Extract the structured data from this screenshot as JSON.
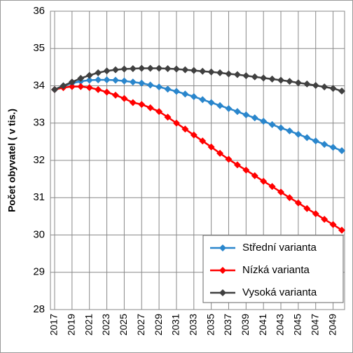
{
  "chart_data": {
    "type": "line",
    "y_label": "Počet obyvatel ( v tis.)",
    "categories": [
      "2017",
      null,
      "2019",
      null,
      "2021",
      null,
      "2023",
      null,
      "2025",
      null,
      "2027",
      null,
      "2029",
      null,
      "2031",
      null,
      "2033",
      null,
      "2035",
      null,
      "2037",
      null,
      "2039",
      null,
      "2041",
      null,
      "2043",
      null,
      "2045",
      null,
      "2047",
      null,
      "2049",
      null
    ],
    "series": [
      {
        "name": "Střední varianta",
        "color": "#2a86cc",
        "values": [
          33.9,
          34.0,
          34.07,
          34.12,
          34.15,
          34.16,
          34.16,
          34.15,
          34.13,
          34.1,
          34.07,
          34.02,
          33.97,
          33.91,
          33.85,
          33.78,
          33.71,
          33.63,
          33.55,
          33.47,
          33.39,
          33.31,
          33.22,
          33.14,
          33.05,
          32.96,
          32.87,
          32.79,
          32.7,
          32.61,
          32.52,
          32.43,
          32.35,
          32.26
        ]
      },
      {
        "name": "Nízká varianta",
        "color": "#ff0000",
        "values": [
          33.9,
          33.95,
          33.98,
          33.98,
          33.95,
          33.9,
          33.83,
          33.75,
          33.66,
          33.55,
          33.5,
          33.41,
          33.31,
          33.16,
          33.0,
          32.84,
          32.68,
          32.52,
          32.36,
          32.19,
          32.03,
          31.88,
          31.74,
          31.59,
          31.44,
          31.3,
          31.15,
          31.0,
          30.86,
          30.71,
          30.57,
          30.42,
          30.28,
          30.13
        ]
      },
      {
        "name": "Vysoká varianta",
        "color": "#404040",
        "values": [
          33.9,
          34.0,
          34.1,
          34.2,
          34.28,
          34.35,
          34.4,
          34.43,
          34.45,
          34.46,
          34.47,
          34.47,
          34.47,
          34.46,
          34.45,
          34.43,
          34.41,
          34.39,
          34.37,
          34.35,
          34.32,
          34.3,
          34.27,
          34.24,
          34.21,
          34.18,
          34.15,
          34.12,
          34.08,
          34.05,
          34.01,
          33.97,
          33.93,
          33.86
        ]
      }
    ],
    "ylim": [
      28,
      36
    ],
    "yticks": [
      28,
      29,
      30,
      31,
      32,
      33,
      34,
      35,
      36
    ],
    "grid": true,
    "legend": "lower right"
  }
}
